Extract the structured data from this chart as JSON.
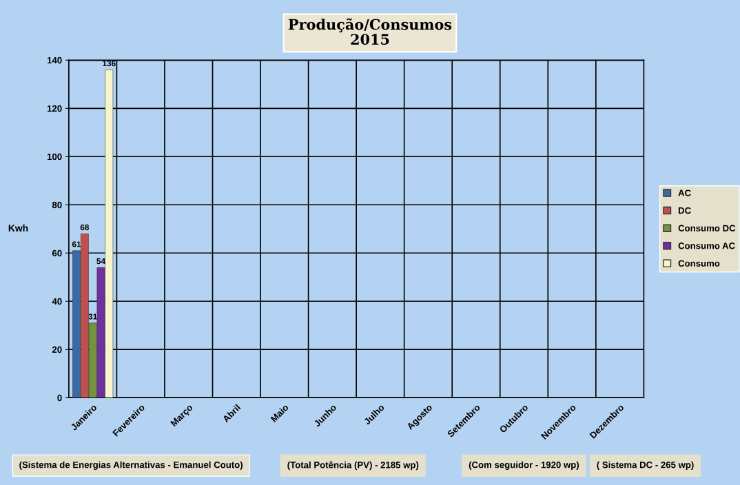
{
  "chart_data": {
    "type": "bar",
    "title": "Produção/Consumos\n2015",
    "ylabel": "Kwh",
    "categories": [
      "Janeiro",
      "Fevereiro",
      "Março",
      "Abril",
      "Maio",
      "Junho",
      "Julho",
      "Agosto",
      "Setembro",
      "Outubro",
      "Novembro",
      "Dezembro"
    ],
    "series": [
      {
        "name": "AC",
        "color": "#3b6aa3",
        "values": [
          61,
          null,
          null,
          null,
          null,
          null,
          null,
          null,
          null,
          null,
          null,
          null
        ]
      },
      {
        "name": "DC",
        "color": "#c0504d",
        "values": [
          68,
          null,
          null,
          null,
          null,
          null,
          null,
          null,
          null,
          null,
          null,
          null
        ]
      },
      {
        "name": "Consumo DC",
        "color": "#76923c",
        "values": [
          31,
          null,
          null,
          null,
          null,
          null,
          null,
          null,
          null,
          null,
          null,
          null
        ]
      },
      {
        "name": "Consumo AC",
        "color": "#7030a0",
        "values": [
          54,
          null,
          null,
          null,
          null,
          null,
          null,
          null,
          null,
          null,
          null,
          null
        ]
      },
      {
        "name": "Consumo",
        "color": "#f8f5cc",
        "values": [
          136,
          null,
          null,
          null,
          null,
          null,
          null,
          null,
          null,
          null,
          null,
          null
        ]
      }
    ],
    "ylim": [
      0,
      140
    ],
    "yticks": [
      0,
      20,
      40,
      60,
      80,
      100,
      120,
      140
    ],
    "grid": true,
    "legend": "right",
    "data_labels": true,
    "annotations": [
      "(Sistema de Energias Alternativas - Emanuel Couto)",
      "(Total Potência (PV) - 2185 wp)",
      "(Com seguidor - 1920 wp)",
      "( Sistema DC - 265 wp)"
    ]
  }
}
